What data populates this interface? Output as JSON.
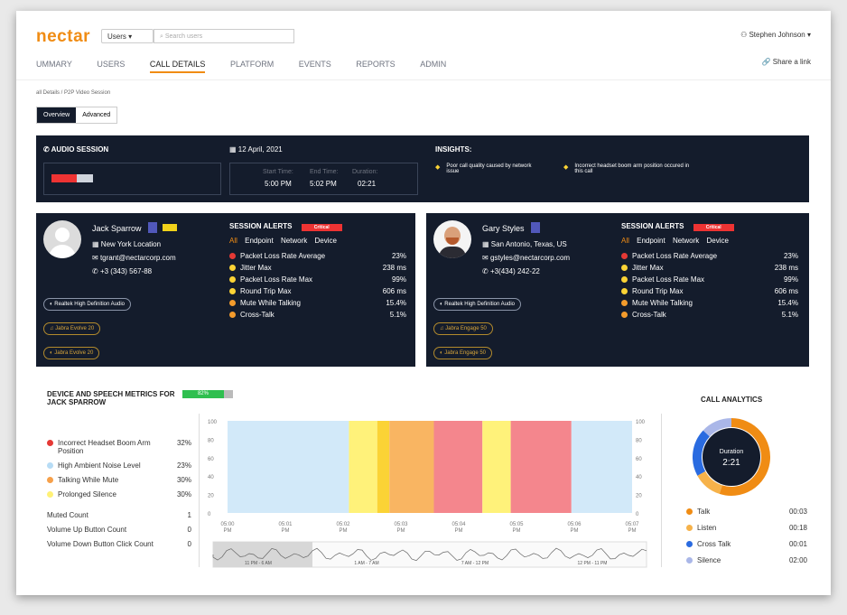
{
  "app": {
    "logo": "nectar",
    "user_select": "Users",
    "search_placeholder": "Search users",
    "user_name": "Stephen Johnson",
    "share": "Share a link"
  },
  "tabs": [
    "UMMARY",
    "USERS",
    "CALL DETAILS",
    "PLATFORM",
    "EVENTS",
    "REPORTS",
    "ADMIN"
  ],
  "breadcrumb": "all Details / P2P Video Session",
  "view_toggle": [
    "Overview",
    "Advanced"
  ],
  "session": {
    "audio_label": "AUDIO SESSION",
    "date": "12 April, 2021",
    "start_label": "Start Time:",
    "end_label": "End Time:",
    "duration_label": "Duration:",
    "start": "5:00 PM",
    "end": "5:02 PM",
    "duration": "02:21",
    "insights_label": "INSIGHTS:",
    "insights": [
      "Poor call quality caused by network issue",
      "Incorrect headset boom arm position occured in this call"
    ]
  },
  "participants": [
    {
      "name": "Jack Sparrow",
      "badge": "",
      "location": "New York Location",
      "email": "tgrant@nectarcorp.com",
      "phone": "+3 (343) 567-88",
      "devices": [
        "Realtek High Definition Audio",
        "Jabra Evolve 20",
        "Jabra Evolve 20"
      ]
    },
    {
      "name": "Gary Styles",
      "location": "San Antonio, Texas, US",
      "email": "gstyles@nectarcorp.com",
      "phone": "+3(434) 242-22",
      "devices": [
        "Realtek High Definition Audio",
        "Jabra Engage 50",
        "Jabra Engage 50"
      ]
    }
  ],
  "alerts": {
    "title": "SESSION ALERTS",
    "tag": "Critical",
    "filters": [
      "All",
      "Endpoint",
      "Network",
      "Device"
    ],
    "rows": [
      {
        "label": "Packet Loss Rate Average",
        "value": "23%",
        "color": "#e53935"
      },
      {
        "label": "Jitter Max",
        "value": "238 ms",
        "color": "#fbd335"
      },
      {
        "label": "Packet Loss Rate Max",
        "value": "99%",
        "color": "#fbd335"
      },
      {
        "label": "Round Trip Max",
        "value": "606 ms",
        "color": "#fbd335"
      },
      {
        "label": "Mute While Talking",
        "value": "15.4%",
        "color": "#f39b2c"
      },
      {
        "label": "Cross-Talk",
        "value": "5.1%",
        "color": "#f39b2c"
      }
    ]
  },
  "metrics": {
    "title": "DEVICE AND SPEECH METRICS FOR JACK SPARROW",
    "score": "82%",
    "rows": [
      {
        "label": "Incorrect Headset Boom Arm Position",
        "value": "32%",
        "color": "#e53935"
      },
      {
        "label": "High Ambient Noise Level",
        "value": "23%",
        "color": "#b7dcf5"
      },
      {
        "label": "Talking While Mute",
        "value": "30%",
        "color": "#f6a04a"
      },
      {
        "label": "Prolonged Silence",
        "value": "30%",
        "color": "#fff176"
      }
    ],
    "counts": [
      {
        "label": "Muted Count",
        "value": "1"
      },
      {
        "label": "Volume Up Button Count",
        "value": "0"
      },
      {
        "label": "Volume Down Button Click Count",
        "value": "0"
      }
    ]
  },
  "timeline": {
    "y_ticks": [
      "100",
      "80",
      "60",
      "40",
      "20",
      "0"
    ],
    "x_ticks": [
      "05:00 PM",
      "05:01 PM",
      "05:02 PM",
      "05:03 PM",
      "05:04 PM",
      "05:05 PM",
      "05:06 PM",
      "05:07 PM"
    ],
    "bands": [
      {
        "from": 0,
        "to": 0.3,
        "color": "#d2e9f9"
      },
      {
        "from": 0.3,
        "to": 0.37,
        "color": "#fff27a"
      },
      {
        "from": 0.37,
        "to": 0.4,
        "color": "#fbd335"
      },
      {
        "from": 0.4,
        "to": 0.51,
        "color": "#f9b562"
      },
      {
        "from": 0.51,
        "to": 0.63,
        "color": "#f4868d"
      },
      {
        "from": 0.63,
        "to": 0.7,
        "color": "#fff27a"
      },
      {
        "from": 0.7,
        "to": 0.85,
        "color": "#f4868d"
      },
      {
        "from": 0.85,
        "to": 1,
        "color": "#d2e9f9"
      }
    ],
    "mini_labels": [
      "11 PM - 6 AM",
      "1 AM - 7 AM",
      "7 AM - 12 PM",
      "12 PM - 11 PM"
    ]
  },
  "analytics": {
    "title": "CALL ANALYTICS",
    "center_label": "Duration",
    "center_value": "2:21",
    "legend": [
      {
        "label": "Talk",
        "value": "00:03",
        "color": "#f08c14"
      },
      {
        "label": "Listen",
        "value": "00:18",
        "color": "#f6b24a"
      },
      {
        "label": "Cross Talk",
        "value": "00:01",
        "color": "#2a6be0"
      },
      {
        "label": "Silence",
        "value": "02:00",
        "color": "#aab7e8"
      }
    ]
  }
}
